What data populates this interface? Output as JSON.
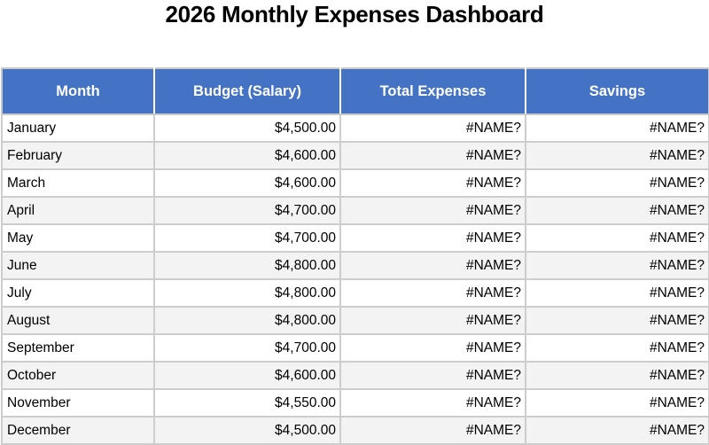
{
  "page": {
    "title": "2026 Monthly Expenses Dashboard"
  },
  "colors": {
    "header_bg": "#4472C4",
    "header_text": "#FFFFFF",
    "row_alt_bg": "#F3F3F3",
    "border": "#C9C9C9"
  },
  "table": {
    "columns": [
      "Month",
      "Budget (Salary)",
      "Total Expenses",
      "Savings"
    ],
    "rows": [
      {
        "month": "January",
        "budget": "$4,500.00",
        "expenses": "#NAME?",
        "savings": "#NAME?"
      },
      {
        "month": "February",
        "budget": "$4,600.00",
        "expenses": "#NAME?",
        "savings": "#NAME?"
      },
      {
        "month": "March",
        "budget": "$4,600.00",
        "expenses": "#NAME?",
        "savings": "#NAME?"
      },
      {
        "month": "April",
        "budget": "$4,700.00",
        "expenses": "#NAME?",
        "savings": "#NAME?"
      },
      {
        "month": "May",
        "budget": "$4,700.00",
        "expenses": "#NAME?",
        "savings": "#NAME?"
      },
      {
        "month": "June",
        "budget": "$4,800.00",
        "expenses": "#NAME?",
        "savings": "#NAME?"
      },
      {
        "month": "July",
        "budget": "$4,800.00",
        "expenses": "#NAME?",
        "savings": "#NAME?"
      },
      {
        "month": "August",
        "budget": "$4,800.00",
        "expenses": "#NAME?",
        "savings": "#NAME?"
      },
      {
        "month": "September",
        "budget": "$4,700.00",
        "expenses": "#NAME?",
        "savings": "#NAME?"
      },
      {
        "month": "October",
        "budget": "$4,600.00",
        "expenses": "#NAME?",
        "savings": "#NAME?"
      },
      {
        "month": "November",
        "budget": "$4,550.00",
        "expenses": "#NAME?",
        "savings": "#NAME?"
      },
      {
        "month": "December",
        "budget": "$4,500.00",
        "expenses": "#NAME?",
        "savings": "#NAME?"
      }
    ]
  }
}
